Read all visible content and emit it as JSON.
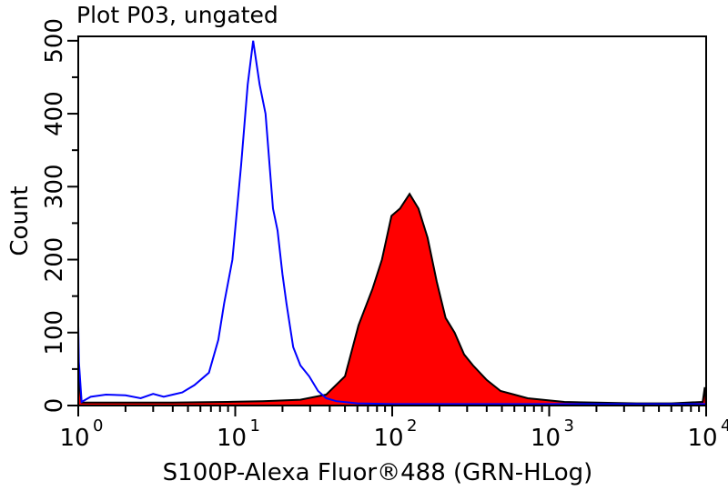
{
  "chart_data": {
    "type": "area",
    "title": "Plot P03, ungated",
    "xlabel": "S100P-Alexa Fluor®488 (GRN-HLog)",
    "ylabel": "Count",
    "xscale": "log",
    "xlim": [
      1,
      10000
    ],
    "ylim": [
      0,
      506
    ],
    "xticks": [
      {
        "base": "10",
        "exp": "0"
      },
      {
        "base": "10",
        "exp": "1"
      },
      {
        "base": "10",
        "exp": "2"
      },
      {
        "base": "10",
        "exp": "3"
      },
      {
        "base": "10",
        "exp": "4"
      }
    ],
    "yticks": [
      "0",
      "100",
      "200",
      "300",
      "400",
      "500"
    ],
    "grid": false,
    "series": [
      {
        "color": "#0000ff",
        "fill": "none",
        "x": [
          1,
          1.01,
          1.05,
          1.2,
          1.5,
          2,
          2.5,
          3,
          3.5,
          4,
          4.6,
          5.5,
          6.8,
          7.8,
          8.5,
          9.6,
          10.9,
          12,
          13,
          14.3,
          15.6,
          17.4,
          18.6,
          20,
          21.2,
          23.4,
          26,
          29.6,
          33.7,
          38,
          44,
          60,
          100,
          300,
          1000,
          3000,
          10000
        ],
        "y": [
          110,
          60,
          5,
          12,
          15,
          14,
          10,
          16,
          12,
          15,
          18,
          28,
          45,
          90,
          140,
          200,
          330,
          440,
          500,
          440,
          400,
          270,
          240,
          180,
          140,
          80,
          55,
          40,
          20,
          10,
          6,
          3,
          2,
          2,
          2,
          2,
          2
        ]
      },
      {
        "color": "#ff0000",
        "stroke": "#000000",
        "fill": "filled",
        "x": [
          1,
          1.05,
          2,
          4,
          8.9,
          15,
          26,
          38,
          50,
          61,
          75,
          86,
          99,
          112,
          129,
          147,
          168,
          192,
          219,
          250,
          287,
          327,
          400,
          490,
          600,
          730,
          1000,
          1250,
          2000,
          3600,
          6000,
          9500,
          9800,
          10000
        ],
        "y": [
          40,
          4,
          4,
          4,
          5,
          6,
          8,
          15,
          40,
          110,
          160,
          200,
          260,
          270,
          290,
          270,
          230,
          170,
          120,
          100,
          70,
          55,
          35,
          20,
          15,
          10,
          7,
          5,
          4,
          3,
          3,
          5,
          25,
          0
        ]
      }
    ]
  }
}
